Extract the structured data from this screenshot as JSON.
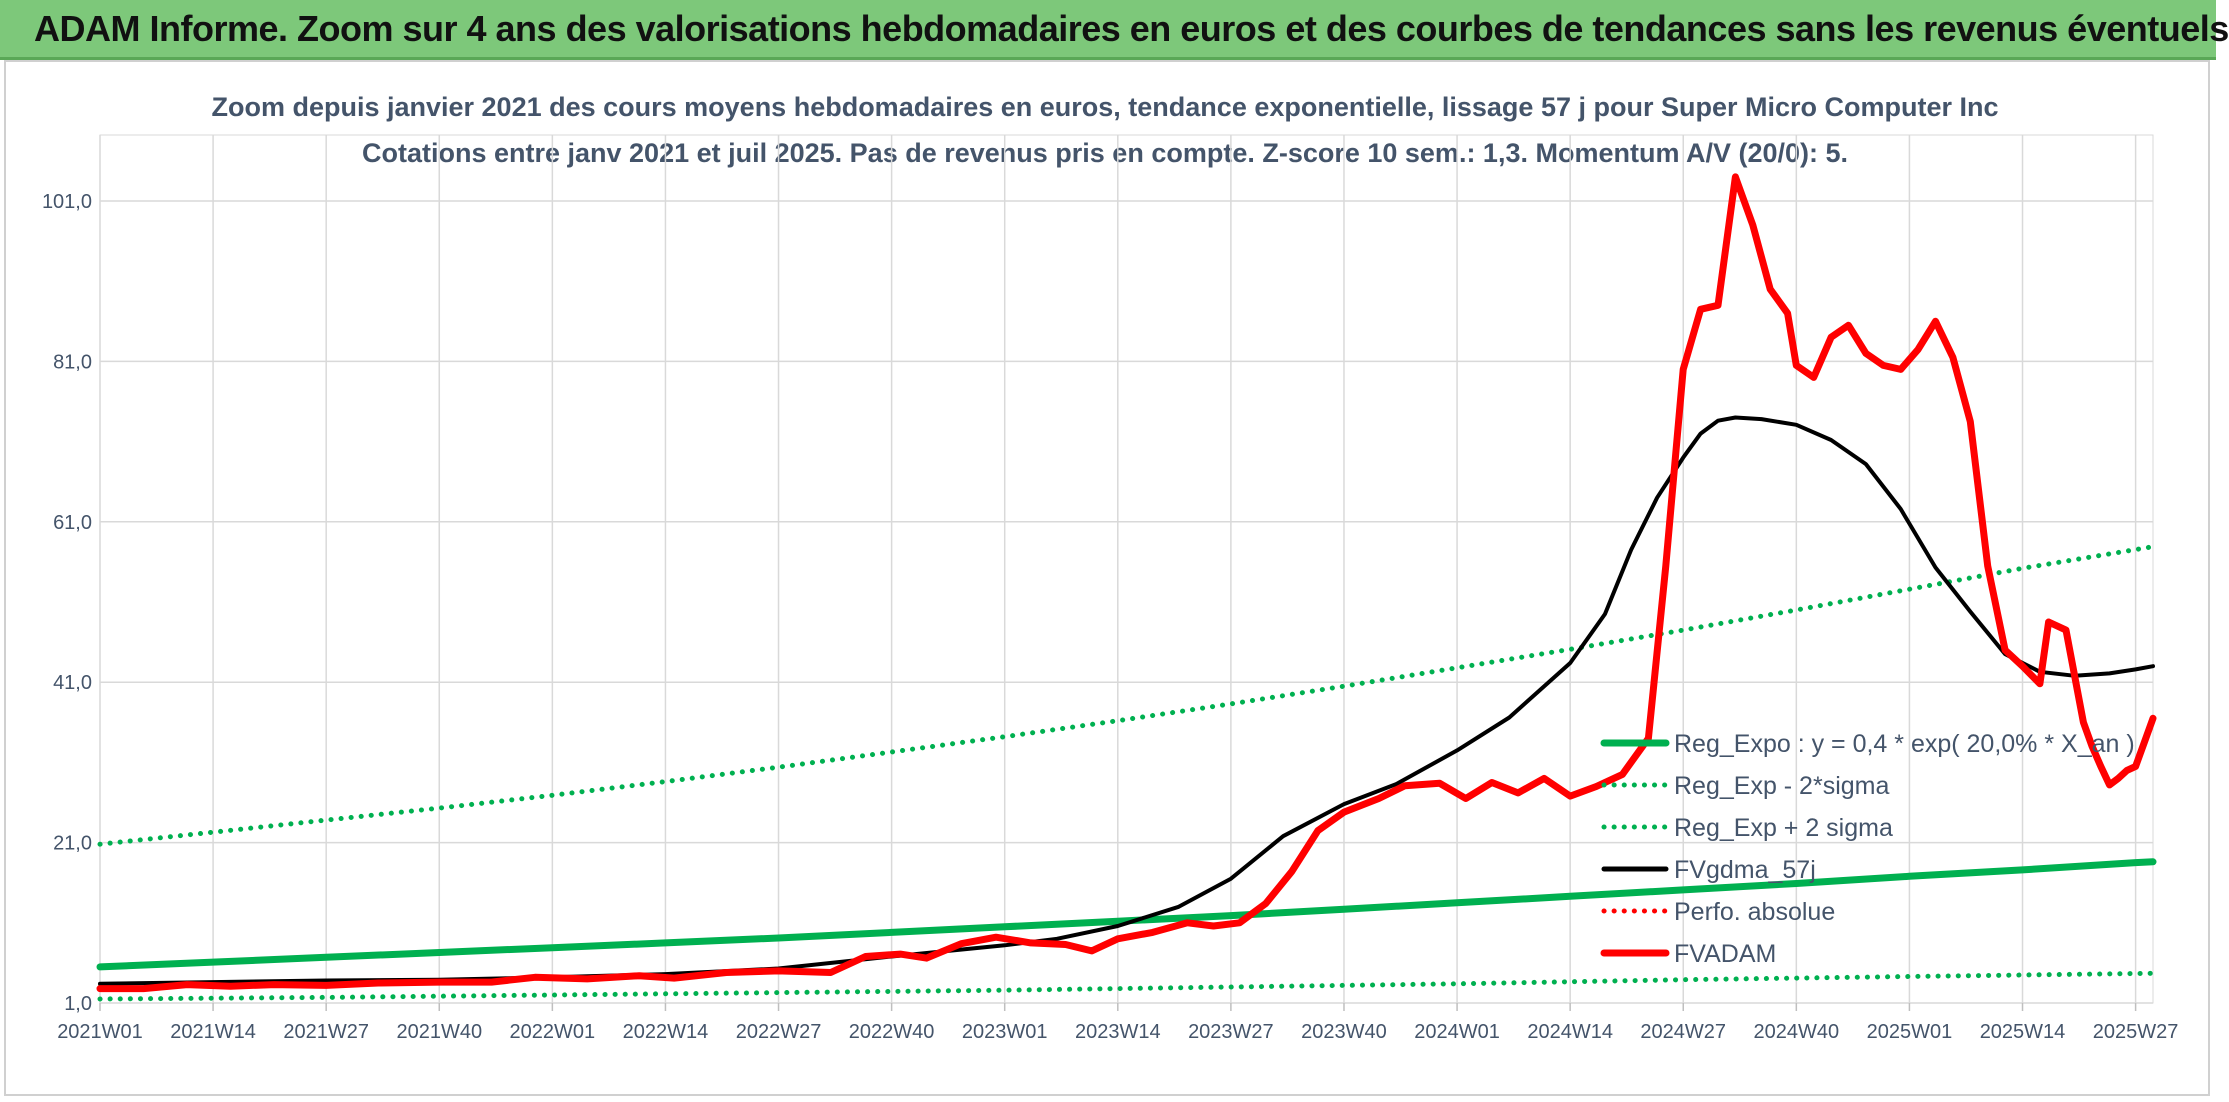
{
  "banner": {
    "title": "ADAM Informe. Zoom sur 4 ans des valorisations hebdomadaires en euros et des courbes de tendances sans les revenus éventuels",
    "color": "#7dc87a"
  },
  "chart_data": {
    "type": "line",
    "title": "Zoom depuis janvier 2021 des cours moyens hebdomadaires en euros, tendance exponentielle, lissage 57 j pour Super Micro Computer Inc",
    "subtitle": "Cotations entre janv 2021 et juil 2025. Pas de revenus pris en compte. Z-score 10 sem.: 1,3. Momentum A/V (20/0): 5.",
    "x_tick_labels": [
      "2021W01",
      "2021W14",
      "2021W27",
      "2021W40",
      "2022W01",
      "2022W14",
      "2022W27",
      "2022W40",
      "2023W01",
      "2023W14",
      "2023W27",
      "2023W40",
      "2024W01",
      "2024W14",
      "2024W27",
      "2024W40",
      "2025W01",
      "2025W14",
      "2025W27"
    ],
    "y_tick_labels": [
      "1,0",
      "21,0",
      "41,0",
      "61,0",
      "81,0",
      "101,0"
    ],
    "ylim": [
      1,
      104
    ],
    "grid": true,
    "legend_position": "right",
    "series": [
      {
        "name": "Reg_Expo : y = 0,4 * exp( 20,0% * X_an )",
        "color": "#00b050",
        "style": "solid",
        "points": [
          [
            0,
            5.5
          ],
          [
            13,
            6.1
          ],
          [
            26,
            6.7
          ],
          [
            39,
            7.3
          ],
          [
            52,
            7.9
          ],
          [
            65,
            8.5
          ],
          [
            78,
            9.1
          ],
          [
            91,
            9.8
          ],
          [
            104,
            10.5
          ],
          [
            117,
            11.2
          ],
          [
            130,
            11.9
          ],
          [
            143,
            12.7
          ],
          [
            156,
            13.5
          ],
          [
            169,
            14.3
          ],
          [
            182,
            15.1
          ],
          [
            195,
            15.9
          ],
          [
            208,
            16.8
          ],
          [
            221,
            17.6
          ],
          [
            234,
            18.5
          ],
          [
            236,
            18.6
          ]
        ]
      },
      {
        "name": "Reg_Exp - 2*sigma",
        "color": "#00b050",
        "style": "dotted",
        "points": [
          [
            0,
            1.5
          ],
          [
            26,
            1.7
          ],
          [
            52,
            2.0
          ],
          [
            78,
            2.3
          ],
          [
            104,
            2.6
          ],
          [
            130,
            3.0
          ],
          [
            156,
            3.4
          ],
          [
            182,
            3.9
          ],
          [
            208,
            4.3
          ],
          [
            236,
            4.7
          ]
        ]
      },
      {
        "name": "Reg_Exp + 2 sigma",
        "color": "#00b050",
        "style": "dotted",
        "points": [
          [
            0,
            20.8
          ],
          [
            13,
            22.3
          ],
          [
            26,
            23.8
          ],
          [
            39,
            25.3
          ],
          [
            52,
            26.9
          ],
          [
            65,
            28.6
          ],
          [
            78,
            30.4
          ],
          [
            91,
            32.3
          ],
          [
            104,
            34.2
          ],
          [
            117,
            36.2
          ],
          [
            130,
            38.3
          ],
          [
            143,
            40.5
          ],
          [
            156,
            42.8
          ],
          [
            169,
            45.1
          ],
          [
            182,
            47.5
          ],
          [
            195,
            50.0
          ],
          [
            208,
            52.6
          ],
          [
            221,
            55.2
          ],
          [
            236,
            57.9
          ]
        ]
      },
      {
        "name": "FVgdma_57j",
        "color": "#000000",
        "style": "solid",
        "points": [
          [
            0,
            3.4
          ],
          [
            13,
            3.6
          ],
          [
            26,
            3.8
          ],
          [
            39,
            3.9
          ],
          [
            52,
            4.2
          ],
          [
            65,
            4.6
          ],
          [
            78,
            5.3
          ],
          [
            91,
            6.8
          ],
          [
            104,
            8.2
          ],
          [
            110,
            9.0
          ],
          [
            117,
            10.6
          ],
          [
            124,
            13.0
          ],
          [
            130,
            16.5
          ],
          [
            136,
            21.8
          ],
          [
            143,
            25.8
          ],
          [
            149,
            28.3
          ],
          [
            156,
            32.5
          ],
          [
            162,
            36.6
          ],
          [
            169,
            43.4
          ],
          [
            173,
            49.5
          ],
          [
            176,
            57.5
          ],
          [
            179,
            64.0
          ],
          [
            182,
            69.0
          ],
          [
            184,
            72.0
          ],
          [
            186,
            73.6
          ],
          [
            188,
            74.0
          ],
          [
            191,
            73.8
          ],
          [
            195,
            73.1
          ],
          [
            199,
            71.2
          ],
          [
            203,
            68.2
          ],
          [
            207,
            62.6
          ],
          [
            211,
            55.3
          ],
          [
            215,
            49.8
          ],
          [
            219,
            44.5
          ],
          [
            223,
            42.3
          ],
          [
            227,
            41.8
          ],
          [
            231,
            42.1
          ],
          [
            234,
            42.6
          ],
          [
            236,
            43.0
          ]
        ]
      },
      {
        "name": "Perfo. absolue",
        "color": "#ff0000",
        "style": "dotted",
        "points": []
      },
      {
        "name": "FVADAM",
        "color": "#ff0000",
        "style": "solid",
        "points": [
          [
            0,
            2.8
          ],
          [
            5,
            2.8
          ],
          [
            10,
            3.3
          ],
          [
            15,
            3.1
          ],
          [
            20,
            3.3
          ],
          [
            26,
            3.2
          ],
          [
            32,
            3.5
          ],
          [
            39,
            3.6
          ],
          [
            45,
            3.6
          ],
          [
            50,
            4.2
          ],
          [
            56,
            4.0
          ],
          [
            62,
            4.4
          ],
          [
            66,
            4.1
          ],
          [
            72,
            4.8
          ],
          [
            78,
            5.0
          ],
          [
            84,
            4.8
          ],
          [
            88,
            6.8
          ],
          [
            92,
            7.1
          ],
          [
            95,
            6.6
          ],
          [
            99,
            8.4
          ],
          [
            103,
            9.2
          ],
          [
            107,
            8.5
          ],
          [
            111,
            8.3
          ],
          [
            114,
            7.5
          ],
          [
            117,
            9.0
          ],
          [
            121,
            9.8
          ],
          [
            125,
            11.0
          ],
          [
            128,
            10.6
          ],
          [
            131,
            11.0
          ],
          [
            134,
            13.4
          ],
          [
            137,
            17.4
          ],
          [
            140,
            22.5
          ],
          [
            143,
            24.8
          ],
          [
            147,
            26.5
          ],
          [
            150,
            28.1
          ],
          [
            154,
            28.4
          ],
          [
            157,
            26.5
          ],
          [
            160,
            28.5
          ],
          [
            163,
            27.2
          ],
          [
            166,
            29.0
          ],
          [
            169,
            26.8
          ],
          [
            172,
            28.0
          ],
          [
            175,
            29.5
          ],
          [
            178,
            34.0
          ],
          [
            180,
            55.5
          ],
          [
            182,
            80.0
          ],
          [
            184,
            87.5
          ],
          [
            186,
            88.0
          ],
          [
            188,
            104.0
          ],
          [
            190,
            98.0
          ],
          [
            192,
            90.0
          ],
          [
            194,
            87.0
          ],
          [
            195,
            80.5
          ],
          [
            197,
            79.0
          ],
          [
            199,
            84.0
          ],
          [
            201,
            85.5
          ],
          [
            203,
            82.0
          ],
          [
            205,
            80.5
          ],
          [
            207,
            80.0
          ],
          [
            209,
            82.5
          ],
          [
            211,
            86.0
          ],
          [
            213,
            81.5
          ],
          [
            215,
            73.5
          ],
          [
            217,
            55.5
          ],
          [
            219,
            45.0
          ],
          [
            221,
            43.0
          ],
          [
            223,
            40.8
          ],
          [
            224,
            48.5
          ],
          [
            226,
            47.5
          ],
          [
            228,
            36.0
          ],
          [
            229,
            33.0
          ],
          [
            230,
            30.5
          ],
          [
            231,
            28.2
          ],
          [
            232,
            29.0
          ],
          [
            233,
            30.0
          ],
          [
            234,
            30.5
          ],
          [
            235,
            33.5
          ],
          [
            236,
            36.5
          ]
        ]
      }
    ]
  }
}
